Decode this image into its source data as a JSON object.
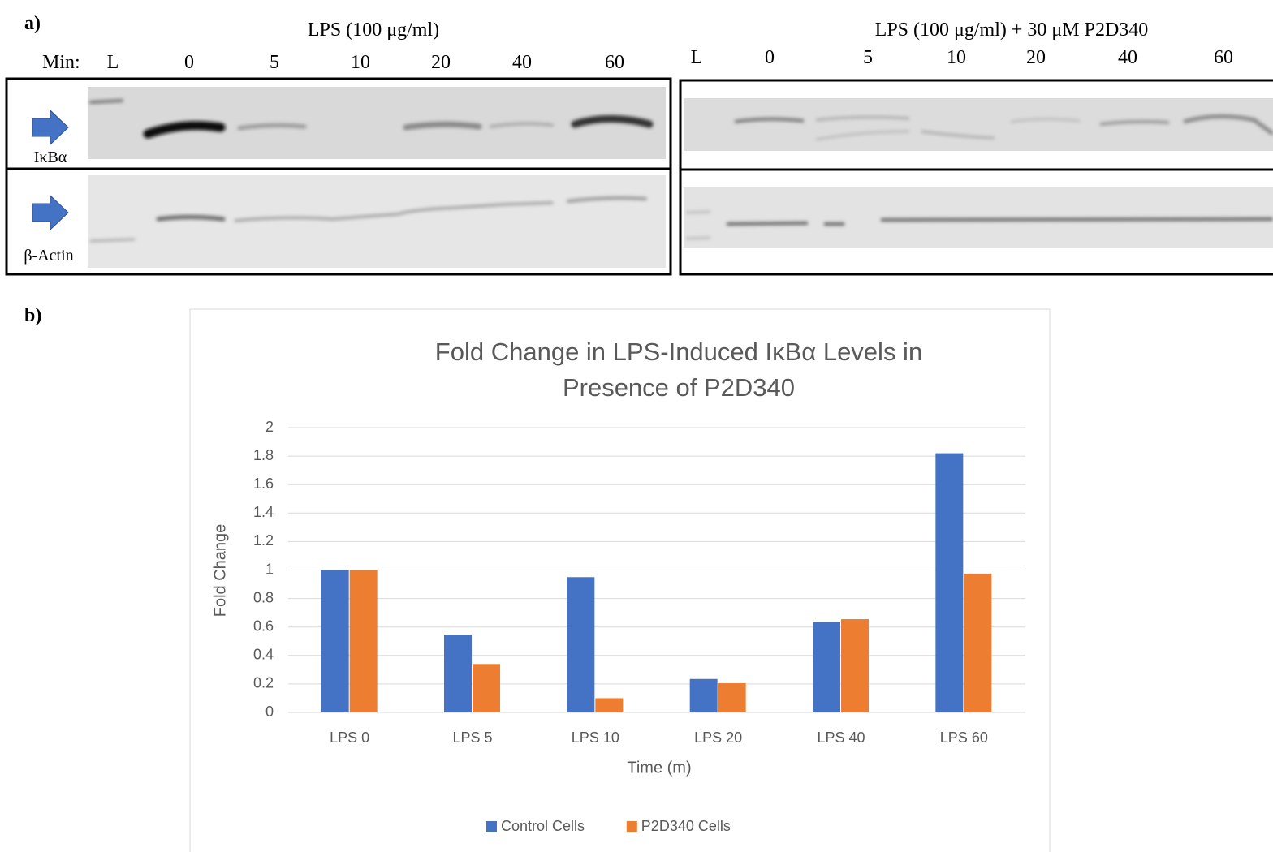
{
  "panel_a": {
    "label": "a)",
    "left": {
      "title": "LPS (100 μg/ml)",
      "min_label": "Min:",
      "lanes": [
        "L",
        "0",
        "5",
        "10",
        "20",
        "40",
        "60"
      ]
    },
    "right": {
      "title": "LPS (100 μg/ml) + 30 μM P2D340",
      "lanes": [
        "L",
        "0",
        "5",
        "10",
        "20",
        "40",
        "60"
      ]
    },
    "rows": [
      "IκBα",
      "β-Actin"
    ]
  },
  "panel_b": {
    "label": "b)"
  },
  "chart_data": {
    "type": "bar",
    "title": "Fold Change in LPS-Induced IκBα Levels in Presence of P2D340",
    "x_label": "Time (m)",
    "y_label": "Fold Change",
    "categories": [
      "LPS 0",
      "LPS 5",
      "LPS 10",
      "LPS 20",
      "LPS 40",
      "LPS 60"
    ],
    "series": [
      {
        "name": "Control Cells",
        "color": "#4472c4",
        "values": [
          1,
          0.545,
          0.95,
          0.235,
          0.635,
          1.82
        ]
      },
      {
        "name": "P2D340 Cells",
        "color": "#ed7d31",
        "values": [
          1,
          0.34,
          0.1,
          0.205,
          0.655,
          0.975
        ]
      }
    ],
    "ylim": [
      0,
      2
    ],
    "yticks": [
      0,
      0.2,
      0.4,
      0.6,
      0.8,
      1,
      1.2,
      1.4,
      1.6,
      1.8,
      2
    ],
    "grid": true,
    "legend": "bottom"
  }
}
